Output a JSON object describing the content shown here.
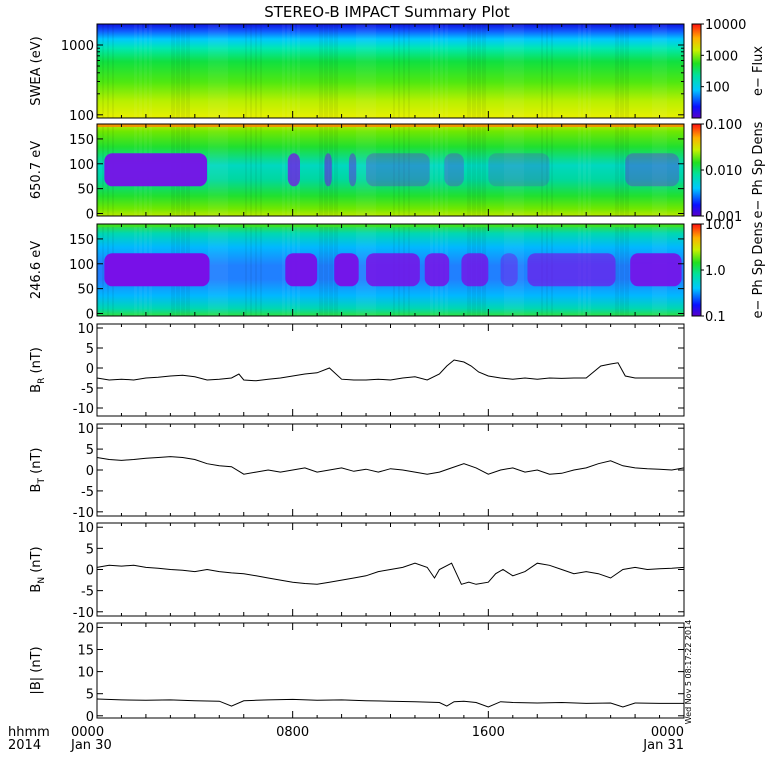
{
  "title": "STEREO-B IMPACT Summary Plot",
  "bottom_left": {
    "hhmm": "hhmm",
    "year": "2014"
  },
  "x_axis": {
    "ticks": [
      {
        "hour": 0,
        "label": "0000",
        "sub": "Jan 30"
      },
      {
        "hour": 8,
        "label": "0800",
        "sub": ""
      },
      {
        "hour": 16,
        "label": "1600",
        "sub": ""
      },
      {
        "hour": 24,
        "label": "0000",
        "sub": "Jan 31"
      }
    ],
    "range_hours": [
      0,
      24
    ]
  },
  "timestamp": "Wed Nov 5 08:17:22 2014",
  "colors": {
    "line": "#000000",
    "axis": "#000000",
    "background": "#ffffff"
  },
  "chart_data": [
    {
      "type": "heatmap",
      "ylabel": "SWEA (eV)",
      "yscale": "log",
      "ylim": [
        90,
        2000
      ],
      "yticks": [
        {
          "v": 100,
          "label": "100"
        },
        {
          "v": 1000,
          "label": "1000"
        }
      ],
      "colorbar": {
        "label": "e− Flux",
        "scale": "log",
        "range": [
          10,
          10000
        ],
        "ticks": [
          {
            "v": 100,
            "label": "100"
          },
          {
            "v": 1000,
            "label": "1000"
          },
          {
            "v": 10000,
            "label": "10000"
          }
        ]
      }
    },
    {
      "type": "heatmap",
      "ylabel": "650.7 eV",
      "yscale": "linear",
      "ylim": [
        -5,
        180
      ],
      "yticks": [
        {
          "v": 0,
          "label": "0"
        },
        {
          "v": 50,
          "label": "50"
        },
        {
          "v": 100,
          "label": "100"
        },
        {
          "v": 150,
          "label": "150"
        }
      ],
      "colorbar": {
        "label": "e− Ph Sp Dens",
        "scale": "log",
        "range": [
          0.001,
          0.1
        ],
        "ticks": [
          {
            "v": 0.001,
            "label": "0.001"
          },
          {
            "v": 0.01,
            "label": "0.010"
          },
          {
            "v": 0.1,
            "label": "0.100"
          }
        ]
      }
    },
    {
      "type": "heatmap",
      "ylabel": "246.6 eV",
      "yscale": "linear",
      "ylim": [
        -5,
        180
      ],
      "yticks": [
        {
          "v": 0,
          "label": "0"
        },
        {
          "v": 50,
          "label": "50"
        },
        {
          "v": 100,
          "label": "100"
        },
        {
          "v": 150,
          "label": "150"
        }
      ],
      "colorbar": {
        "label": "e− Ph Sp Dens",
        "scale": "log",
        "range": [
          0.1,
          10
        ],
        "ticks": [
          {
            "v": 0.1,
            "label": "0.1"
          },
          {
            "v": 1,
            "label": "1.0"
          },
          {
            "v": 10,
            "label": "10.0"
          }
        ]
      }
    },
    {
      "type": "line",
      "ylabel": "B",
      "ylabel_sub": "R",
      "ylabel_unit": " (nT)",
      "ylim": [
        -12,
        11
      ],
      "yticks": [
        -10,
        -5,
        0,
        5,
        10
      ],
      "x": [
        0,
        0.5,
        1,
        1.5,
        2,
        2.5,
        3,
        3.5,
        4,
        4.5,
        5,
        5.5,
        5.8,
        6,
        6.5,
        7,
        7.5,
        8,
        8.5,
        9,
        9.5,
        10,
        10.5,
        11,
        11.5,
        12,
        12.5,
        13,
        13.5,
        14,
        14.3,
        14.6,
        15,
        15.3,
        15.6,
        16,
        16.5,
        17,
        17.5,
        18,
        18.5,
        19,
        19.5,
        20,
        20.3,
        20.6,
        21,
        21.3,
        21.6,
        22,
        22.5,
        23,
        23.5,
        24
      ],
      "y": [
        -2.5,
        -3,
        -2.8,
        -3,
        -2.5,
        -2.3,
        -2.0,
        -1.8,
        -2.2,
        -3,
        -2.8,
        -2.5,
        -1.5,
        -3,
        -3.2,
        -2.8,
        -2.5,
        -2,
        -1.5,
        -1.2,
        0,
        -2.8,
        -3,
        -3,
        -2.8,
        -3,
        -2.5,
        -2.2,
        -3,
        -1.5,
        0.5,
        2,
        1.5,
        0.5,
        -1,
        -2,
        -2.5,
        -2.8,
        -2.5,
        -2.8,
        -2.5,
        -2.6,
        -2.5,
        -2.5,
        -1,
        0.5,
        1,
        1.3,
        -2,
        -2.5,
        -2.5,
        -2.5,
        -2.5,
        -2.5
      ]
    },
    {
      "type": "line",
      "ylabel": "B",
      "ylabel_sub": "T",
      "ylabel_unit": " (nT)",
      "ylim": [
        -11,
        11
      ],
      "yticks": [
        -10,
        -5,
        0,
        5,
        10
      ],
      "x": [
        0,
        0.5,
        1,
        1.5,
        2,
        2.5,
        3,
        3.5,
        4,
        4.5,
        5,
        5.5,
        6,
        6.5,
        7,
        7.5,
        8,
        8.5,
        9,
        9.5,
        10,
        10.5,
        11,
        11.5,
        12,
        12.5,
        13,
        13.5,
        14,
        14.5,
        15,
        15.5,
        16,
        16.5,
        17,
        17.5,
        18,
        18.5,
        19,
        19.5,
        20,
        20.5,
        21,
        21.5,
        22,
        22.5,
        23,
        23.5,
        24
      ],
      "y": [
        3,
        2.5,
        2.3,
        2.5,
        2.8,
        3,
        3.2,
        3,
        2.5,
        1.5,
        1,
        0.8,
        -1,
        -0.5,
        0,
        -0.5,
        0,
        0.5,
        -0.5,
        0,
        0.5,
        -0.3,
        0.2,
        -0.5,
        0.3,
        0,
        -0.5,
        -1,
        -0.5,
        0.5,
        1.5,
        0.5,
        -1,
        0,
        0.5,
        -0.5,
        0,
        -1,
        -0.8,
        0,
        0.5,
        1.5,
        2.2,
        1,
        0.5,
        0.3,
        0.2,
        0,
        0.5
      ]
    },
    {
      "type": "line",
      "ylabel": "B",
      "ylabel_sub": "N",
      "ylabel_unit": " (nT)",
      "ylim": [
        -11,
        11
      ],
      "yticks": [
        -10,
        -5,
        0,
        5,
        10
      ],
      "x": [
        0,
        0.5,
        1,
        1.5,
        2,
        2.5,
        3,
        3.5,
        4,
        4.5,
        5,
        5.5,
        6,
        6.5,
        7,
        7.5,
        8,
        8.5,
        9,
        9.5,
        10,
        10.5,
        11,
        11.5,
        12,
        12.5,
        13,
        13.5,
        13.8,
        14,
        14.5,
        14.9,
        15.2,
        15.5,
        16,
        16.3,
        16.6,
        17,
        17.5,
        18,
        18.5,
        19,
        19.5,
        20,
        20.5,
        21,
        21.5,
        22,
        22.5,
        23,
        23.5,
        24
      ],
      "y": [
        0.5,
        1,
        0.8,
        1,
        0.5,
        0.3,
        0,
        -0.2,
        -0.5,
        0,
        -0.5,
        -0.8,
        -1,
        -1.5,
        -2,
        -2.5,
        -3,
        -3.3,
        -3.5,
        -3,
        -2.5,
        -2,
        -1.5,
        -0.5,
        0,
        0.5,
        1.5,
        0.5,
        -2,
        0,
        1.5,
        -3.5,
        -3,
        -3.5,
        -3,
        -1,
        0,
        -1.5,
        -0.5,
        1.5,
        1,
        0,
        -1,
        -0.5,
        -1,
        -2,
        0,
        0.5,
        0,
        0.2,
        0.3,
        0.5
      ]
    },
    {
      "type": "line",
      "ylabel": "|B| (nT)",
      "ylim": [
        -0.5,
        21
      ],
      "yticks": [
        0,
        5,
        10,
        15,
        20
      ],
      "x": [
        0,
        1,
        2,
        3,
        4,
        5,
        5.5,
        6,
        6.5,
        7,
        8,
        9,
        10,
        11,
        12,
        13,
        14,
        14.3,
        14.6,
        15,
        15.5,
        16,
        16.5,
        17,
        18,
        19,
        20,
        21,
        21.5,
        22,
        23,
        24
      ],
      "y": [
        3.8,
        3.6,
        3.5,
        3.6,
        3.4,
        3.3,
        2.2,
        3.4,
        3.5,
        3.6,
        3.7,
        3.5,
        3.6,
        3.4,
        3.3,
        3.2,
        3.0,
        2.2,
        3.2,
        3.3,
        3.0,
        2.0,
        3.2,
        3.0,
        2.9,
        3.0,
        2.8,
        2.9,
        2.0,
        2.9,
        2.8,
        2.8
      ]
    }
  ]
}
